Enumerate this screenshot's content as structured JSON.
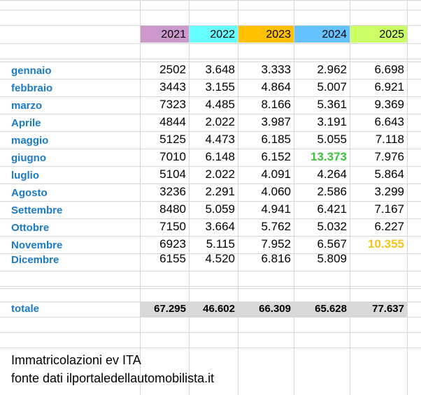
{
  "sheet": {
    "years": [
      {
        "label": "2021",
        "color": "#cc99cc"
      },
      {
        "label": "2022",
        "color": "#66ffff"
      },
      {
        "label": "2023",
        "color": "#ffc000"
      },
      {
        "label": "2024",
        "color": "#66c2ff"
      },
      {
        "label": "2025",
        "color": "#ccff66"
      }
    ],
    "highlight_colors": {
      "green": "#3cc43c",
      "yellow": "#f5c518"
    },
    "rows": [
      {
        "month": "gennaio",
        "values": [
          "2502",
          "3.648",
          "3.333",
          "2.962",
          "6.698"
        ]
      },
      {
        "month": "febbraio",
        "values": [
          "3443",
          "3.155",
          "4.864",
          "5.007",
          "6.921"
        ]
      },
      {
        "month": "marzo",
        "values": [
          "7323",
          "4.485",
          "8.166",
          "5.361",
          "9.369"
        ]
      },
      {
        "month": "Aprile",
        "values": [
          "4844",
          "2.022",
          "3.987",
          "3.191",
          "6.643"
        ]
      },
      {
        "month": "maggio",
        "values": [
          "5125",
          "4.473",
          "6.185",
          "5.055",
          "7.118"
        ]
      },
      {
        "month": "giugno",
        "values": [
          "7010",
          "6.148",
          "6.152",
          "13.373",
          "7.976"
        ],
        "highlight": {
          "3": "green"
        }
      },
      {
        "month": "luglio",
        "values": [
          "5104",
          "2.022",
          "4.091",
          "4.264",
          "5.864"
        ]
      },
      {
        "month": "Agosto",
        "values": [
          "3236",
          "2.291",
          "4.060",
          "2.586",
          "3.299"
        ]
      },
      {
        "month": "Settembre",
        "values": [
          "8480",
          "5.059",
          "4.941",
          "6.421",
          "7.167"
        ]
      },
      {
        "month": "Ottobre",
        "values": [
          "7150",
          "3.664",
          "5.762",
          "5.032",
          "6.227"
        ]
      },
      {
        "month": "Novembre",
        "values": [
          "6923",
          "5.115",
          "7.952",
          "6.567",
          "10.355"
        ],
        "highlight": {
          "4": "yellow"
        }
      },
      {
        "month": "Dicembre",
        "values": [
          "6155",
          "4.520",
          "6.816",
          "5.809",
          ""
        ]
      }
    ],
    "total": {
      "label": "totale",
      "values": [
        "67.295",
        "46.602",
        "66.309",
        "65.628",
        "77.637"
      ]
    },
    "notes": [
      "Immatricolazioni ev ITA",
      "fonte dati ilportaledellautomobilista.it"
    ]
  }
}
